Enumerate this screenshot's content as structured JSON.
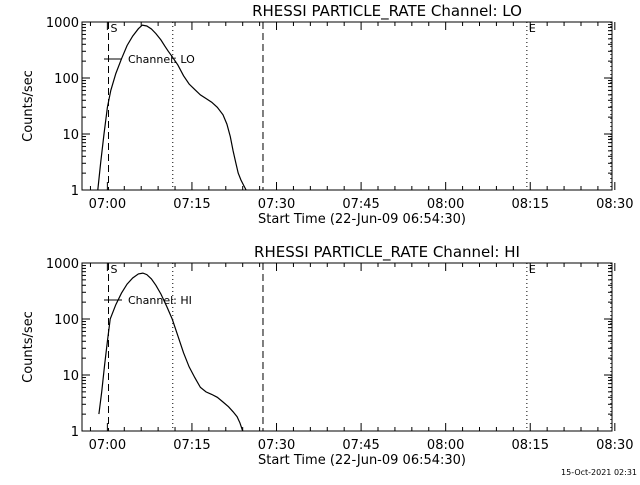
{
  "footer": {
    "timestamp": "15-Oct-2021 02:31"
  },
  "chart_data": [
    {
      "type": "line",
      "title": "RHESSI PARTICLE_RATE Channel: LO",
      "xlabel": "Start Time (22-Jun-09 06:54:30)",
      "ylabel": "Counts/sec",
      "y_scale": "log",
      "ylim": [
        1,
        1000
      ],
      "y_ticks": [
        "1",
        "10",
        "100",
        "1000"
      ],
      "x_range_min": [
        -4.5,
        89.5
      ],
      "x_ticks": [
        "07:00",
        "07:15",
        "07:30",
        "07:45",
        "08:00",
        "08:15",
        "08:30"
      ],
      "x_ticks_min": [
        0,
        15,
        30,
        45,
        60,
        75,
        90
      ],
      "legend": "Channel: LO",
      "markers": [
        {
          "label": "S",
          "min": 0.2,
          "style": "dashed"
        },
        {
          "label": "",
          "min": 11.6,
          "style": "dotted"
        },
        {
          "label": "",
          "min": 27.6,
          "style": "dashed"
        },
        {
          "label": "E",
          "min": 74.4,
          "style": "dotted"
        },
        {
          "label": "",
          "min": 89.3,
          "style": "dotted"
        }
      ],
      "series": [
        {
          "x": [
            -1.7,
            -1.2,
            -0.6,
            0,
            0.6,
            1.5,
            2.5,
            3.5,
            4.5,
            5.5,
            6.2,
            7.0,
            7.8,
            8.6,
            9.5,
            10.2,
            10.8,
            11.5,
            12.5,
            13.5,
            14.5,
            15.5,
            16.5,
            17.5,
            18.5,
            19.5,
            20.5,
            21.2,
            21.8,
            22.3,
            22.8,
            23.2,
            23.7,
            24.2,
            24.6
          ],
          "y": [
            1,
            3,
            10,
            30,
            60,
            120,
            220,
            380,
            560,
            760,
            880,
            850,
            750,
            620,
            480,
            370,
            300,
            240,
            170,
            110,
            78,
            62,
            50,
            43,
            37,
            30,
            22,
            15,
            9,
            5,
            3,
            2,
            1.5,
            1.2,
            1
          ]
        }
      ]
    },
    {
      "type": "line",
      "title": "RHESSI PARTICLE_RATE Channel: HI",
      "xlabel": "Start Time (22-Jun-09 06:54:30)",
      "ylabel": "Counts/sec",
      "y_scale": "log",
      "ylim": [
        1,
        1000
      ],
      "y_ticks": [
        "1",
        "10",
        "100",
        "1000"
      ],
      "x_range_min": [
        -4.5,
        89.5
      ],
      "x_ticks": [
        "07:00",
        "07:15",
        "07:30",
        "07:45",
        "08:00",
        "08:15",
        "08:30"
      ],
      "x_ticks_min": [
        0,
        15,
        30,
        45,
        60,
        75,
        90
      ],
      "legend": "Channel: HI",
      "markers": [
        {
          "label": "S",
          "min": 0.2,
          "style": "dashed"
        },
        {
          "label": "",
          "min": 11.6,
          "style": "dotted"
        },
        {
          "label": "",
          "min": 27.6,
          "style": "dashed"
        },
        {
          "label": "E",
          "min": 74.4,
          "style": "dotted"
        },
        {
          "label": "",
          "min": 89.3,
          "style": "dotted"
        }
      ],
      "series": [
        {
          "x": [
            -1.5,
            -1.0,
            -0.5,
            0,
            0.5,
            1.5,
            2.5,
            3.5,
            4.5,
            5.5,
            6.3,
            7.0,
            7.8,
            8.6,
            9.5,
            10.5,
            11.5,
            12.5,
            13.5,
            14.5,
            15.5,
            16.5,
            17.5,
            18.5,
            19.5,
            20.5,
            21.5,
            22.3,
            23.0,
            23.5,
            24.0
          ],
          "y": [
            2,
            5,
            15,
            40,
            100,
            180,
            290,
            420,
            540,
            640,
            660,
            620,
            520,
            400,
            280,
            170,
            100,
            50,
            25,
            14,
            9,
            6,
            5,
            4.5,
            4,
            3.3,
            2.7,
            2.2,
            1.8,
            1.4,
            1
          ]
        }
      ]
    }
  ]
}
